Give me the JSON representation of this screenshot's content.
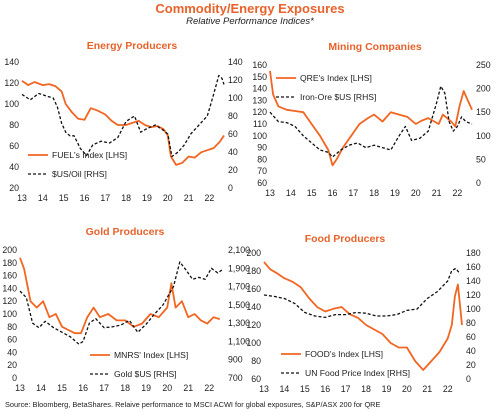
{
  "header": {
    "title": "Commodity/Energy Exposures",
    "subtitle": "Relative Performance Indices*"
  },
  "footer": {
    "source": "Source: Bloomberg, BetaShares.  Relaive performance to MSCI ACWI for global exposures, S&P/ASX 200 for QRE"
  },
  "colors": {
    "orange": "#f26522",
    "black": "#111111"
  },
  "chart_data": [
    {
      "type": "line",
      "title": "Energy Producers",
      "xlim": [
        13,
        22.7
      ],
      "xticks": [
        "13",
        "14",
        "15",
        "16",
        "17",
        "18",
        "19",
        "20",
        "21",
        "22"
      ],
      "left_axis": {
        "ylim": [
          20,
          140
        ],
        "ticks": [
          "20",
          "40",
          "60",
          "80",
          "100",
          "120",
          "140"
        ]
      },
      "right_axis": {
        "ylim": [
          0,
          140
        ],
        "ticks": [
          "0",
          "20",
          "40",
          "60",
          "80",
          "100",
          "120",
          "140"
        ]
      },
      "legend": "bottom-left",
      "series": [
        {
          "name": "FUEL's Index [LHS]",
          "axis": "left",
          "color": "#f26522",
          "dashed": false,
          "x": [
            13,
            13.3,
            13.6,
            14,
            14.3,
            14.6,
            14.9,
            15.1,
            15.4,
            15.7,
            16,
            16.3,
            16.6,
            17,
            17.3,
            17.6,
            18,
            18.3,
            18.6,
            18.9,
            19.2,
            19.5,
            19.8,
            20,
            20.15,
            20.4,
            20.7,
            21,
            21.3,
            21.6,
            21.9,
            22.2,
            22.5,
            22.7
          ],
          "y": [
            122,
            118,
            121,
            118,
            119,
            117,
            112,
            100,
            92,
            86,
            85,
            96,
            94,
            90,
            84,
            80,
            80,
            82,
            84,
            80,
            78,
            79,
            76,
            70,
            50,
            42,
            44,
            50,
            49,
            54,
            56,
            58,
            64,
            70
          ]
        },
        {
          "name": "$US/Oil [RHS]",
          "axis": "right",
          "color": "#111111",
          "dashed": true,
          "x": [
            13,
            13.4,
            13.8,
            14.2,
            14.5,
            14.7,
            14.9,
            15.1,
            15.3,
            15.5,
            15.8,
            16.1,
            16.4,
            16.8,
            17.2,
            17.6,
            18,
            18.4,
            18.7,
            19,
            19.4,
            19.8,
            20,
            20.2,
            20.5,
            20.8,
            21.1,
            21.5,
            21.9,
            22.2,
            22.45,
            22.6,
            22.7
          ],
          "y": [
            104,
            98,
            105,
            102,
            100,
            90,
            72,
            62,
            58,
            58,
            44,
            36,
            48,
            52,
            50,
            56,
            74,
            80,
            62,
            66,
            70,
            64,
            60,
            35,
            40,
            48,
            60,
            70,
            80,
            104,
            125,
            122,
            115
          ]
        }
      ]
    },
    {
      "type": "line",
      "title": "Mining Companies",
      "xlim": [
        13,
        22.7
      ],
      "xticks": [
        "13",
        "14",
        "15",
        "16",
        "17",
        "18",
        "19",
        "20",
        "21",
        "22"
      ],
      "left_axis": {
        "ylim": [
          60,
          160
        ],
        "ticks": [
          "60",
          "70",
          "80",
          "90",
          "100",
          "110",
          "120",
          "130",
          "140",
          "150",
          "160"
        ]
      },
      "right_axis": {
        "ylim": [
          0,
          250
        ],
        "ticks": [
          "0",
          "50",
          "100",
          "150",
          "200",
          "250"
        ]
      },
      "legend": "top-left",
      "series": [
        {
          "name": "QRE's Index [LHS]",
          "axis": "left",
          "color": "#f26522",
          "dashed": false,
          "x": [
            13,
            13.15,
            13.4,
            13.8,
            14.2,
            14.6,
            15,
            15.4,
            15.8,
            16,
            16.2,
            16.5,
            16.9,
            17.3,
            17.7,
            18,
            18.4,
            18.8,
            19.2,
            19.6,
            20,
            20.3,
            20.6,
            20.9,
            21.1,
            21.3,
            21.5,
            21.7,
            21.9,
            22.1,
            22.3,
            22.5,
            22.7
          ],
          "y": [
            155,
            135,
            125,
            122,
            121,
            120,
            110,
            100,
            88,
            75,
            80,
            90,
            100,
            110,
            115,
            118,
            112,
            120,
            118,
            116,
            110,
            113,
            115,
            112,
            110,
            118,
            115,
            112,
            108,
            125,
            138,
            130,
            122
          ]
        },
        {
          "name": "Iron-Ore $US [RHS]",
          "axis": "right",
          "color": "#111111",
          "dashed": true,
          "x": [
            13,
            13.4,
            13.8,
            14.2,
            14.6,
            15,
            15.4,
            15.8,
            16,
            16.4,
            16.8,
            17.2,
            17.6,
            18,
            18.4,
            18.8,
            19.2,
            19.5,
            19.8,
            20.2,
            20.6,
            21,
            21.2,
            21.4,
            21.6,
            21.8,
            22,
            22.2,
            22.4,
            22.7
          ],
          "y": [
            150,
            130,
            128,
            120,
            100,
            85,
            70,
            65,
            55,
            70,
            80,
            85,
            75,
            80,
            75,
            70,
            100,
            120,
            90,
            95,
            110,
            170,
            205,
            190,
            130,
            110,
            120,
            140,
            130,
            125
          ]
        }
      ]
    },
    {
      "type": "line",
      "title": "Gold Producers",
      "xlim": [
        13,
        22.7
      ],
      "xticks": [
        "13",
        "14",
        "15",
        "16",
        "17",
        "18",
        "19",
        "20",
        "21",
        "22"
      ],
      "left_axis": {
        "ylim": [
          0,
          200
        ],
        "ticks": [
          "0",
          "20",
          "40",
          "60",
          "80",
          "100",
          "120",
          "140",
          "160",
          "180",
          "200"
        ]
      },
      "right_axis": {
        "ylim": [
          700,
          2100
        ],
        "ticks": [
          "700",
          "900",
          "1,100",
          "1,300",
          "1,500",
          "1,700",
          "1,900",
          "2,100"
        ]
      },
      "legend": "bottom-right",
      "series": [
        {
          "name": "MNRS' Index [LHS]",
          "axis": "left",
          "color": "#f26522",
          "dashed": false,
          "x": [
            13,
            13.2,
            13.5,
            13.8,
            14.1,
            14.4,
            14.7,
            15,
            15.3,
            15.6,
            15.9,
            16.2,
            16.5,
            16.8,
            17.2,
            17.6,
            18,
            18.4,
            18.8,
            19.2,
            19.6,
            20,
            20.2,
            20.4,
            20.7,
            21,
            21.3,
            21.6,
            21.9,
            22.2,
            22.5
          ],
          "y": [
            188,
            170,
            120,
            110,
            120,
            95,
            100,
            80,
            75,
            70,
            70,
            95,
            110,
            95,
            100,
            90,
            90,
            80,
            85,
            100,
            95,
            110,
            148,
            110,
            120,
            95,
            100,
            90,
            85,
            95,
            92
          ]
        },
        {
          "name": "Gold $US [RHS]",
          "axis": "right",
          "color": "#111111",
          "dashed": true,
          "x": [
            13,
            13.3,
            13.6,
            13.9,
            14.2,
            14.6,
            15,
            15.4,
            15.8,
            16,
            16.3,
            16.6,
            17,
            17.4,
            17.8,
            18.2,
            18.6,
            19,
            19.4,
            19.8,
            20,
            20.3,
            20.6,
            20.9,
            21.2,
            21.5,
            21.8,
            22.1,
            22.4,
            22.6
          ],
          "y": [
            1650,
            1580,
            1300,
            1250,
            1320,
            1250,
            1200,
            1150,
            1070,
            1100,
            1300,
            1350,
            1250,
            1260,
            1280,
            1330,
            1200,
            1290,
            1400,
            1500,
            1580,
            1700,
            1970,
            1880,
            1780,
            1800,
            1780,
            1900,
            1850,
            1880
          ]
        }
      ]
    },
    {
      "type": "line",
      "title": "Food Producers",
      "xlim": [
        13,
        22.7
      ],
      "xticks": [
        "13",
        "14",
        "15",
        "16",
        "17",
        "18",
        "19",
        "20",
        "21",
        "22"
      ],
      "left_axis": {
        "ylim": [
          60,
          200
        ],
        "ticks": [
          "60",
          "80",
          "100",
          "120",
          "140",
          "160",
          "180",
          "200"
        ]
      },
      "right_axis": {
        "ylim": [
          0,
          180
        ],
        "ticks": [
          "0",
          "20",
          "40",
          "60",
          "80",
          "100",
          "120",
          "140",
          "160",
          "180"
        ]
      },
      "legend": "bottom-left",
      "series": [
        {
          "name": "FOOD's Index [LHS]",
          "axis": "left",
          "color": "#f26522",
          "dashed": false,
          "x": [
            13,
            13.3,
            13.6,
            14,
            14.4,
            14.8,
            15.2,
            15.6,
            16,
            16.4,
            16.8,
            17.2,
            17.6,
            18,
            18.4,
            18.8,
            19.2,
            19.6,
            20,
            20.4,
            20.8,
            21.2,
            21.6,
            22,
            22.2,
            22.35,
            22.5,
            22.7
          ],
          "y": [
            190,
            182,
            178,
            172,
            168,
            162,
            150,
            140,
            135,
            138,
            140,
            132,
            128,
            120,
            115,
            110,
            100,
            95,
            95,
            80,
            70,
            80,
            90,
            105,
            120,
            152,
            165,
            120
          ]
        },
        {
          "name": "UN Food Price Index [RHS]",
          "axis": "right",
          "color": "#111111",
          "dashed": true,
          "x": [
            13,
            13.5,
            14,
            14.5,
            15,
            15.5,
            16,
            16.5,
            17,
            17.5,
            18,
            18.5,
            19,
            19.5,
            20,
            20.5,
            21,
            21.5,
            22,
            22.2,
            22.4,
            22.6
          ],
          "y": [
            120,
            118,
            115,
            108,
            95,
            90,
            88,
            92,
            92,
            95,
            94,
            90,
            90,
            92,
            98,
            100,
            115,
            125,
            140,
            155,
            158,
            150
          ]
        }
      ]
    }
  ]
}
